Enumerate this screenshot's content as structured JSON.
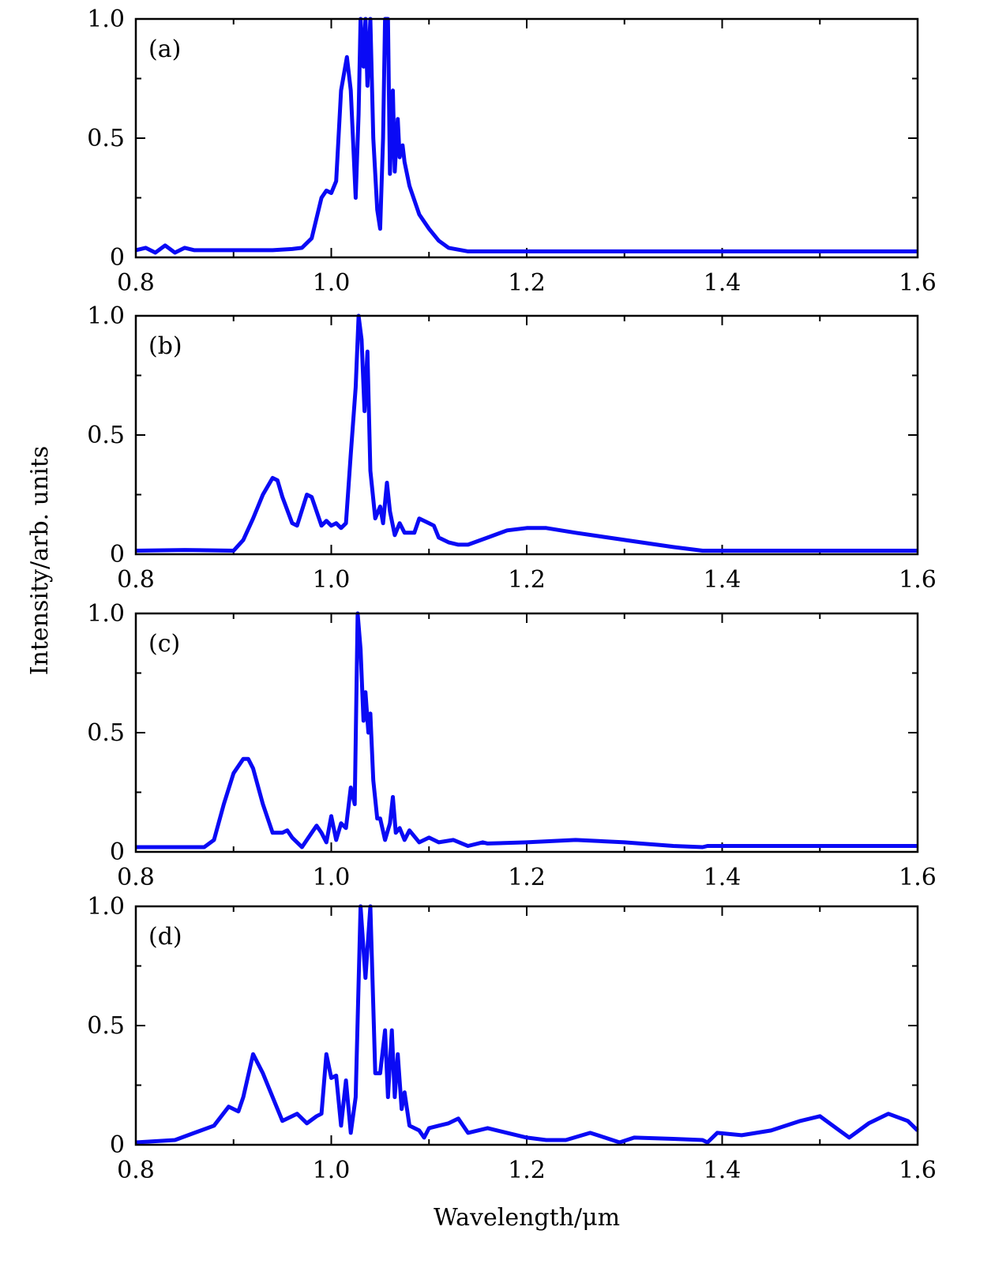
{
  "chart_data": {
    "type": "line",
    "series_color": "#0a0af5",
    "xlabel": "Wavelength/μm",
    "ylabel": "Intensity/arb. units",
    "xlim": [
      0.8,
      1.6
    ],
    "ylim": [
      0,
      1.0
    ],
    "x_ticks": [
      "0.8",
      "1.0",
      "1.2",
      "1.4",
      "1.6"
    ],
    "y_ticks": [
      "0",
      "0.5",
      "1.0"
    ],
    "grid": false,
    "panels": [
      {
        "label": "(a)",
        "points": [
          [
            0.8,
            0.03
          ],
          [
            0.81,
            0.04
          ],
          [
            0.82,
            0.02
          ],
          [
            0.83,
            0.05
          ],
          [
            0.84,
            0.02
          ],
          [
            0.85,
            0.04
          ],
          [
            0.86,
            0.03
          ],
          [
            0.88,
            0.03
          ],
          [
            0.9,
            0.03
          ],
          [
            0.94,
            0.03
          ],
          [
            0.96,
            0.035
          ],
          [
            0.97,
            0.04
          ],
          [
            0.98,
            0.08
          ],
          [
            0.99,
            0.25
          ],
          [
            0.995,
            0.28
          ],
          [
            1.0,
            0.27
          ],
          [
            1.005,
            0.32
          ],
          [
            1.01,
            0.7
          ],
          [
            1.016,
            0.84
          ],
          [
            1.02,
            0.7
          ],
          [
            1.025,
            0.25
          ],
          [
            1.028,
            0.6
          ],
          [
            1.03,
            1.0
          ],
          [
            1.033,
            0.8
          ],
          [
            1.035,
            1.0
          ],
          [
            1.037,
            0.72
          ],
          [
            1.04,
            1.0
          ],
          [
            1.043,
            0.5
          ],
          [
            1.047,
            0.2
          ],
          [
            1.05,
            0.12
          ],
          [
            1.053,
            0.5
          ],
          [
            1.055,
            1.0
          ],
          [
            1.058,
            1.0
          ],
          [
            1.06,
            0.35
          ],
          [
            1.063,
            0.7
          ],
          [
            1.065,
            0.36
          ],
          [
            1.068,
            0.58
          ],
          [
            1.07,
            0.42
          ],
          [
            1.073,
            0.47
          ],
          [
            1.075,
            0.4
          ],
          [
            1.08,
            0.3
          ],
          [
            1.09,
            0.18
          ],
          [
            1.1,
            0.12
          ],
          [
            1.11,
            0.07
          ],
          [
            1.12,
            0.04
          ],
          [
            1.14,
            0.025
          ],
          [
            1.6,
            0.025
          ]
        ]
      },
      {
        "label": "(b)",
        "points": [
          [
            0.8,
            0.015
          ],
          [
            0.85,
            0.018
          ],
          [
            0.9,
            0.015
          ],
          [
            0.91,
            0.06
          ],
          [
            0.92,
            0.15
          ],
          [
            0.93,
            0.25
          ],
          [
            0.94,
            0.32
          ],
          [
            0.945,
            0.31
          ],
          [
            0.95,
            0.24
          ],
          [
            0.96,
            0.13
          ],
          [
            0.965,
            0.12
          ],
          [
            0.975,
            0.25
          ],
          [
            0.98,
            0.24
          ],
          [
            0.99,
            0.12
          ],
          [
            0.995,
            0.14
          ],
          [
            1.0,
            0.12
          ],
          [
            1.005,
            0.13
          ],
          [
            1.01,
            0.11
          ],
          [
            1.015,
            0.13
          ],
          [
            1.02,
            0.42
          ],
          [
            1.025,
            0.7
          ],
          [
            1.028,
            1.0
          ],
          [
            1.031,
            0.9
          ],
          [
            1.034,
            0.6
          ],
          [
            1.037,
            0.85
          ],
          [
            1.04,
            0.35
          ],
          [
            1.045,
            0.15
          ],
          [
            1.05,
            0.2
          ],
          [
            1.053,
            0.13
          ],
          [
            1.057,
            0.3
          ],
          [
            1.06,
            0.18
          ],
          [
            1.065,
            0.08
          ],
          [
            1.07,
            0.13
          ],
          [
            1.075,
            0.09
          ],
          [
            1.085,
            0.09
          ],
          [
            1.09,
            0.15
          ],
          [
            1.1,
            0.13
          ],
          [
            1.105,
            0.12
          ],
          [
            1.11,
            0.07
          ],
          [
            1.12,
            0.05
          ],
          [
            1.13,
            0.04
          ],
          [
            1.14,
            0.04
          ],
          [
            1.16,
            0.07
          ],
          [
            1.18,
            0.1
          ],
          [
            1.2,
            0.11
          ],
          [
            1.22,
            0.11
          ],
          [
            1.25,
            0.09
          ],
          [
            1.3,
            0.06
          ],
          [
            1.35,
            0.03
          ],
          [
            1.38,
            0.015
          ],
          [
            1.6,
            0.015
          ]
        ]
      },
      {
        "label": "(c)",
        "points": [
          [
            0.8,
            0.02
          ],
          [
            0.87,
            0.02
          ],
          [
            0.88,
            0.05
          ],
          [
            0.89,
            0.2
          ],
          [
            0.9,
            0.33
          ],
          [
            0.91,
            0.39
          ],
          [
            0.915,
            0.39
          ],
          [
            0.92,
            0.35
          ],
          [
            0.93,
            0.2
          ],
          [
            0.94,
            0.08
          ],
          [
            0.95,
            0.08
          ],
          [
            0.955,
            0.09
          ],
          [
            0.96,
            0.06
          ],
          [
            0.97,
            0.02
          ],
          [
            0.98,
            0.08
          ],
          [
            0.985,
            0.11
          ],
          [
            0.99,
            0.08
          ],
          [
            0.995,
            0.04
          ],
          [
            1.0,
            0.15
          ],
          [
            1.005,
            0.05
          ],
          [
            1.01,
            0.12
          ],
          [
            1.015,
            0.1
          ],
          [
            1.02,
            0.27
          ],
          [
            1.024,
            0.2
          ],
          [
            1.027,
            1.0
          ],
          [
            1.03,
            0.85
          ],
          [
            1.033,
            0.55
          ],
          [
            1.035,
            0.67
          ],
          [
            1.038,
            0.5
          ],
          [
            1.04,
            0.58
          ],
          [
            1.043,
            0.3
          ],
          [
            1.047,
            0.14
          ],
          [
            1.05,
            0.14
          ],
          [
            1.055,
            0.05
          ],
          [
            1.06,
            0.12
          ],
          [
            1.063,
            0.23
          ],
          [
            1.066,
            0.08
          ],
          [
            1.07,
            0.1
          ],
          [
            1.075,
            0.05
          ],
          [
            1.08,
            0.09
          ],
          [
            1.09,
            0.04
          ],
          [
            1.1,
            0.06
          ],
          [
            1.11,
            0.04
          ],
          [
            1.125,
            0.05
          ],
          [
            1.14,
            0.025
          ],
          [
            1.155,
            0.04
          ],
          [
            1.16,
            0.035
          ],
          [
            1.2,
            0.04
          ],
          [
            1.25,
            0.05
          ],
          [
            1.3,
            0.04
          ],
          [
            1.35,
            0.025
          ],
          [
            1.38,
            0.02
          ],
          [
            1.385,
            0.025
          ],
          [
            1.6,
            0.025
          ]
        ]
      },
      {
        "label": "(d)",
        "points": [
          [
            0.8,
            0.01
          ],
          [
            0.84,
            0.02
          ],
          [
            0.86,
            0.05
          ],
          [
            0.88,
            0.08
          ],
          [
            0.895,
            0.16
          ],
          [
            0.905,
            0.14
          ],
          [
            0.91,
            0.2
          ],
          [
            0.92,
            0.38
          ],
          [
            0.93,
            0.3
          ],
          [
            0.94,
            0.2
          ],
          [
            0.95,
            0.1
          ],
          [
            0.965,
            0.13
          ],
          [
            0.975,
            0.09
          ],
          [
            0.985,
            0.12
          ],
          [
            0.99,
            0.13
          ],
          [
            0.995,
            0.38
          ],
          [
            1.0,
            0.28
          ],
          [
            1.005,
            0.29
          ],
          [
            1.01,
            0.08
          ],
          [
            1.015,
            0.27
          ],
          [
            1.02,
            0.05
          ],
          [
            1.025,
            0.2
          ],
          [
            1.03,
            1.0
          ],
          [
            1.035,
            0.7
          ],
          [
            1.04,
            1.0
          ],
          [
            1.045,
            0.3
          ],
          [
            1.05,
            0.3
          ],
          [
            1.055,
            0.48
          ],
          [
            1.058,
            0.2
          ],
          [
            1.062,
            0.48
          ],
          [
            1.065,
            0.2
          ],
          [
            1.068,
            0.38
          ],
          [
            1.072,
            0.15
          ],
          [
            1.075,
            0.22
          ],
          [
            1.08,
            0.08
          ],
          [
            1.09,
            0.06
          ],
          [
            1.095,
            0.03
          ],
          [
            1.1,
            0.07
          ],
          [
            1.11,
            0.08
          ],
          [
            1.12,
            0.09
          ],
          [
            1.13,
            0.11
          ],
          [
            1.14,
            0.05
          ],
          [
            1.16,
            0.07
          ],
          [
            1.18,
            0.05
          ],
          [
            1.2,
            0.03
          ],
          [
            1.22,
            0.02
          ],
          [
            1.24,
            0.02
          ],
          [
            1.265,
            0.05
          ],
          [
            1.28,
            0.03
          ],
          [
            1.295,
            0.01
          ],
          [
            1.31,
            0.03
          ],
          [
            1.35,
            0.025
          ],
          [
            1.38,
            0.02
          ],
          [
            1.385,
            0.01
          ],
          [
            1.395,
            0.05
          ],
          [
            1.42,
            0.04
          ],
          [
            1.45,
            0.06
          ],
          [
            1.48,
            0.1
          ],
          [
            1.5,
            0.12
          ],
          [
            1.52,
            0.06
          ],
          [
            1.53,
            0.03
          ],
          [
            1.55,
            0.09
          ],
          [
            1.57,
            0.13
          ],
          [
            1.59,
            0.1
          ],
          [
            1.6,
            0.06
          ]
        ]
      }
    ]
  }
}
